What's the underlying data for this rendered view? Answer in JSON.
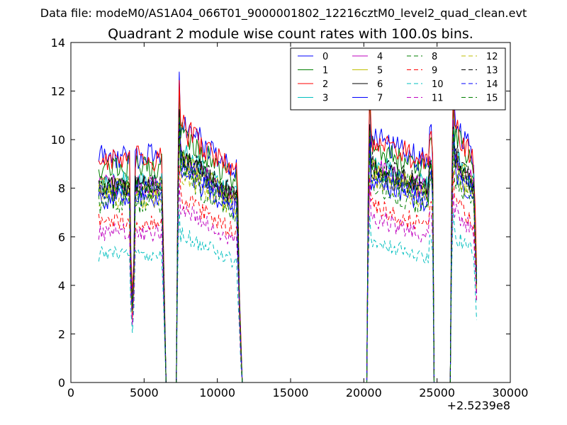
{
  "header": {
    "data_file": "Data file: modeM0/AS1A04_066T01_9000001802_12216cztM0_level2_quad_clean.evt"
  },
  "chart_data": {
    "type": "line",
    "title": "Quadrant 2 module wise count rates with 100.0s bins.",
    "xlabel": "",
    "ylabel": "",
    "x_offset_label": "+2.5239e8",
    "xlim": [
      0,
      30000
    ],
    "ylim": [
      0,
      14
    ],
    "x_ticks": [
      0,
      5000,
      10000,
      15000,
      20000,
      25000,
      30000
    ],
    "x_tick_labels": [
      "0",
      "5000",
      "10000",
      "15000",
      "20000",
      "25000",
      "30000"
    ],
    "y_ticks": [
      0,
      2,
      4,
      6,
      8,
      10,
      12,
      14
    ],
    "y_tick_labels": [
      "0",
      "2",
      "4",
      "6",
      "8",
      "10",
      "12",
      "14"
    ],
    "legend_position": "top-right",
    "legend_columns": 4,
    "segments": [
      {
        "start": 1900,
        "end": 4000,
        "kind": "flat"
      },
      {
        "start": 4000,
        "end": 4400,
        "kind": "dip",
        "dip_factor": 0.38
      },
      {
        "start": 4400,
        "end": 6200,
        "kind": "flat"
      },
      {
        "start": 6200,
        "end": 6500,
        "kind": "drop"
      },
      {
        "start": 6500,
        "end": 7200,
        "kind": "zero"
      },
      {
        "start": 7200,
        "end": 7500,
        "kind": "rise_peak",
        "peak_factor": 1.35
      },
      {
        "start": 7500,
        "end": 11300,
        "kind": "decay",
        "from_factor": 1.15,
        "to_factor": 0.93
      },
      {
        "start": 11300,
        "end": 11700,
        "kind": "drop_noisy"
      },
      {
        "start": 11700,
        "end": 20200,
        "kind": "zero"
      },
      {
        "start": 20200,
        "end": 20500,
        "kind": "rise_peak",
        "peak_factor": 1.3
      },
      {
        "start": 20500,
        "end": 24500,
        "kind": "decay",
        "from_factor": 1.1,
        "to_factor": 0.97
      },
      {
        "start": 24500,
        "end": 24700,
        "kind": "spike",
        "peak_factor": 1.12
      },
      {
        "start": 24700,
        "end": 24800,
        "kind": "drop"
      },
      {
        "start": 24800,
        "end": 25900,
        "kind": "zero"
      },
      {
        "start": 25900,
        "end": 26200,
        "kind": "rise_peak",
        "peak_factor": 1.3
      },
      {
        "start": 26200,
        "end": 27500,
        "kind": "decay",
        "from_factor": 1.15,
        "to_factor": 1.0
      },
      {
        "start": 27500,
        "end": 27750,
        "kind": "end_drop",
        "to_factor": 0.38
      }
    ],
    "series": [
      {
        "name": "0",
        "color": "#0000ff",
        "style": "solid",
        "base": 9.3,
        "width": 1.0
      },
      {
        "name": "1",
        "color": "#007f00",
        "style": "solid",
        "base": 8.9,
        "width": 1.0
      },
      {
        "name": "2",
        "color": "#ff0000",
        "style": "solid",
        "base": 9.2,
        "width": 1.0
      },
      {
        "name": "3",
        "color": "#00bfbf",
        "style": "solid",
        "base": 8.2,
        "width": 1.0
      },
      {
        "name": "4",
        "color": "#bf00bf",
        "style": "solid",
        "base": 8.1,
        "width": 1.0
      },
      {
        "name": "5",
        "color": "#bfbf00",
        "style": "solid",
        "base": 8.0,
        "width": 1.0
      },
      {
        "name": "6",
        "color": "#000000",
        "style": "solid",
        "base": 8.1,
        "width": 1.0
      },
      {
        "name": "7",
        "color": "#0000ff",
        "style": "solid",
        "base": 7.6,
        "width": 1.0
      },
      {
        "name": "8",
        "color": "#007f00",
        "style": "dashed",
        "base": 7.4,
        "width": 1.0
      },
      {
        "name": "9",
        "color": "#ff0000",
        "style": "dashed",
        "base": 6.6,
        "width": 1.0
      },
      {
        "name": "10",
        "color": "#00bfbf",
        "style": "dashed",
        "base": 5.3,
        "width": 1.0
      },
      {
        "name": "11",
        "color": "#bf00bf",
        "style": "dashed",
        "base": 6.2,
        "width": 1.0
      },
      {
        "name": "12",
        "color": "#bfbf00",
        "style": "dashed",
        "base": 7.6,
        "width": 1.0
      },
      {
        "name": "13",
        "color": "#000000",
        "style": "dashed",
        "base": 8.2,
        "width": 1.0
      },
      {
        "name": "14",
        "color": "#0000ff",
        "style": "dashed",
        "base": 7.9,
        "width": 1.0
      },
      {
        "name": "15",
        "color": "#007f00",
        "style": "dashed",
        "base": 8.0,
        "width": 1.0
      }
    ]
  }
}
